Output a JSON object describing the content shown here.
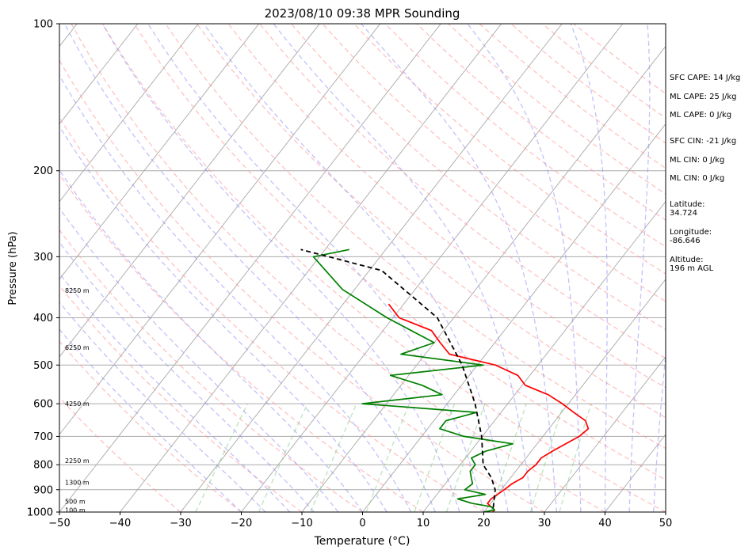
{
  "chart_data": {
    "type": "line",
    "title": "2023/08/10 09:38 MPR Sounding",
    "xlabel": "Temperature (°C)",
    "ylabel": "Pressure (hPa)",
    "xlim": [
      -50,
      50
    ],
    "ylim": [
      1000,
      100
    ],
    "y_scale": "log",
    "skew_t": true,
    "x_ticks": [
      "−50",
      "−40",
      "−30",
      "−20",
      "−10",
      "0",
      "10",
      "20",
      "30",
      "40",
      "50"
    ],
    "y_ticks": [
      "100",
      "200",
      "300",
      "400",
      "500",
      "600",
      "700",
      "800",
      "900",
      "1000"
    ],
    "height_labels": [
      "8250 m",
      "6250 m",
      "4250 m",
      "2250 m",
      "1300 m",
      "500 m",
      "100 m"
    ],
    "series": [
      {
        "name": "",
        "color": "#ff0000",
        "x_temp_c": [
          21.5,
          21.5,
          20.5,
          19.5,
          19.5,
          20.0,
          20.5,
          21.0,
          22.0,
          22.0,
          22.5,
          22.5,
          23.5,
          26.0,
          26.5,
          25.0,
          22.0,
          19.0,
          15.5,
          10.5,
          8.0,
          3.0,
          -6.0,
          -9.0,
          -12.0,
          -19.0,
          -22.5
        ],
        "y_pressure_hpa": [
          1000,
          990,
          975,
          960,
          940,
          920,
          900,
          875,
          850,
          825,
          800,
          775,
          750,
          700,
          675,
          650,
          625,
          600,
          575,
          550,
          525,
          500,
          475,
          450,
          425,
          400,
          375
        ]
      },
      {
        "name": "",
        "color": "#008000",
        "x_temp_c": [
          20.0,
          21.5,
          20.5,
          17.0,
          14.0,
          18.0,
          14.0,
          14.5,
          13.5,
          12.5,
          12.5,
          11.0,
          12.5,
          16.0,
          7.0,
          2.0,
          2.0,
          6.0,
          -14.0,
          -2.0,
          -6.5,
          -13.0,
          1.0,
          -14.0,
          -10.0,
          -21.0,
          -32.0,
          -41.0,
          -36.0
        ],
        "y_pressure_hpa": [
          1000,
          990,
          975,
          960,
          940,
          920,
          900,
          875,
          850,
          825,
          800,
          775,
          750,
          725,
          700,
          675,
          650,
          625,
          600,
          575,
          550,
          525,
          500,
          475,
          450,
          400,
          350,
          300,
          290
        ]
      },
      {
        "name": "",
        "color": "#000000",
        "dashed": true,
        "x_temp_c": [
          21.0,
          19.0,
          16.8,
          13.8,
          9.9,
          4.6,
          -2.5,
          -12.7,
          -28.0,
          -44.0
        ],
        "y_pressure_hpa": [
          980,
          900,
          850,
          800,
          700,
          600,
          500,
          400,
          320,
          290
        ]
      }
    ]
  },
  "sidebar": {
    "sfc_cape": "SFC CAPE: 14 J/kg",
    "ml_cape_1": "ML CAPE: 25 J/kg",
    "ml_cape_2": "ML CAPE: 0 J/kg",
    "sfc_cin": "SFC CIN: -21 J/kg",
    "ml_cin_1": "ML CIN: 0 J/kg",
    "ml_cin_2": "ML CIN: 0 J/kg",
    "latitude_label": "Latitude:",
    "latitude_value": "34.724",
    "longitude_label": "Longitude:",
    "longitude_value": "-86.646",
    "altitude_label": "Altitude:",
    "altitude_value": "196 m AGL"
  },
  "colors": {
    "temperature": "#ff0000",
    "dewpoint": "#008000",
    "parcel": "#000000",
    "dry_adiabats": "#ff9999",
    "moist_adiabats": "#8f8ff5",
    "mixing_ratio": "#88cc88",
    "isotherms": "#999999"
  }
}
